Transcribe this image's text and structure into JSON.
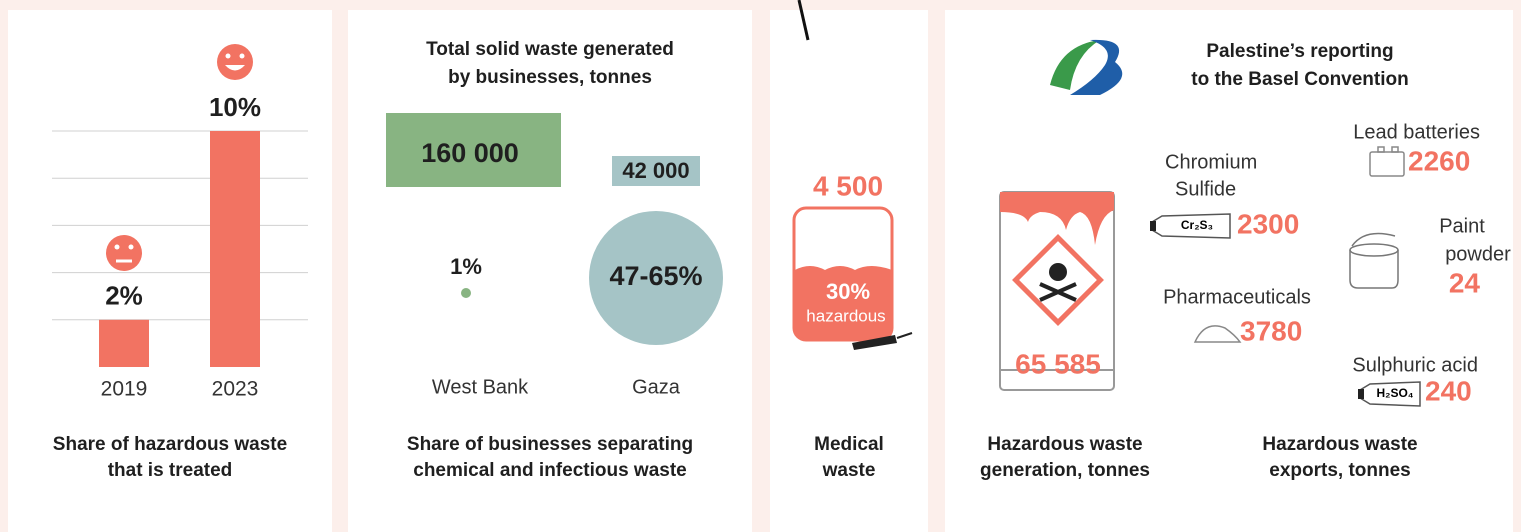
{
  "treated": {
    "categories": [
      "2019",
      "2023"
    ],
    "values": [
      2,
      10
    ],
    "value_labels": [
      "2%",
      "10%"
    ],
    "ylim": [
      0,
      10
    ],
    "yticks": [
      2,
      4,
      6,
      8,
      10
    ],
    "grid": true,
    "color": "#f27362",
    "caption": [
      "Share of hazardous waste",
      "that is treated"
    ]
  },
  "separating": {
    "title": [
      "Total solid waste generated",
      "by businesses, tonnes"
    ],
    "regions": [
      {
        "name": "West Bank",
        "tonnes": "160 000",
        "share": "1%"
      },
      {
        "name": "Gaza",
        "tonnes": "42 000",
        "share": "47-65%"
      }
    ],
    "caption": [
      "Share of businesses separating",
      "chemical and infectious waste"
    ]
  },
  "medical": {
    "tonnes": "4 500",
    "share": "30%",
    "share_note": "hazardous",
    "caption": [
      "Medical",
      "waste"
    ]
  },
  "basel": {
    "title": [
      "Palestine’s reporting",
      "to the Basel Convention"
    ],
    "generation": "65 585",
    "generation_caption": [
      "Hazardous waste",
      "generation, tonnes"
    ],
    "exports": [
      {
        "name": [
          "Lead batteries"
        ],
        "tonnes": "2260"
      },
      {
        "name": [
          "Chromium",
          "Sulfide"
        ],
        "formula": "Cr₂S₃",
        "tonnes": "2300"
      },
      {
        "name": [
          "Paint",
          "powder"
        ],
        "tonnes": "24"
      },
      {
        "name": [
          "Pharmaceuticals"
        ],
        "tonnes": "3780"
      },
      {
        "name": [
          "Sulphuric acid"
        ],
        "formula": "H₂SO₄",
        "tonnes": "240"
      }
    ],
    "exports_caption": [
      "Hazardous waste",
      "exports, tonnes"
    ]
  }
}
